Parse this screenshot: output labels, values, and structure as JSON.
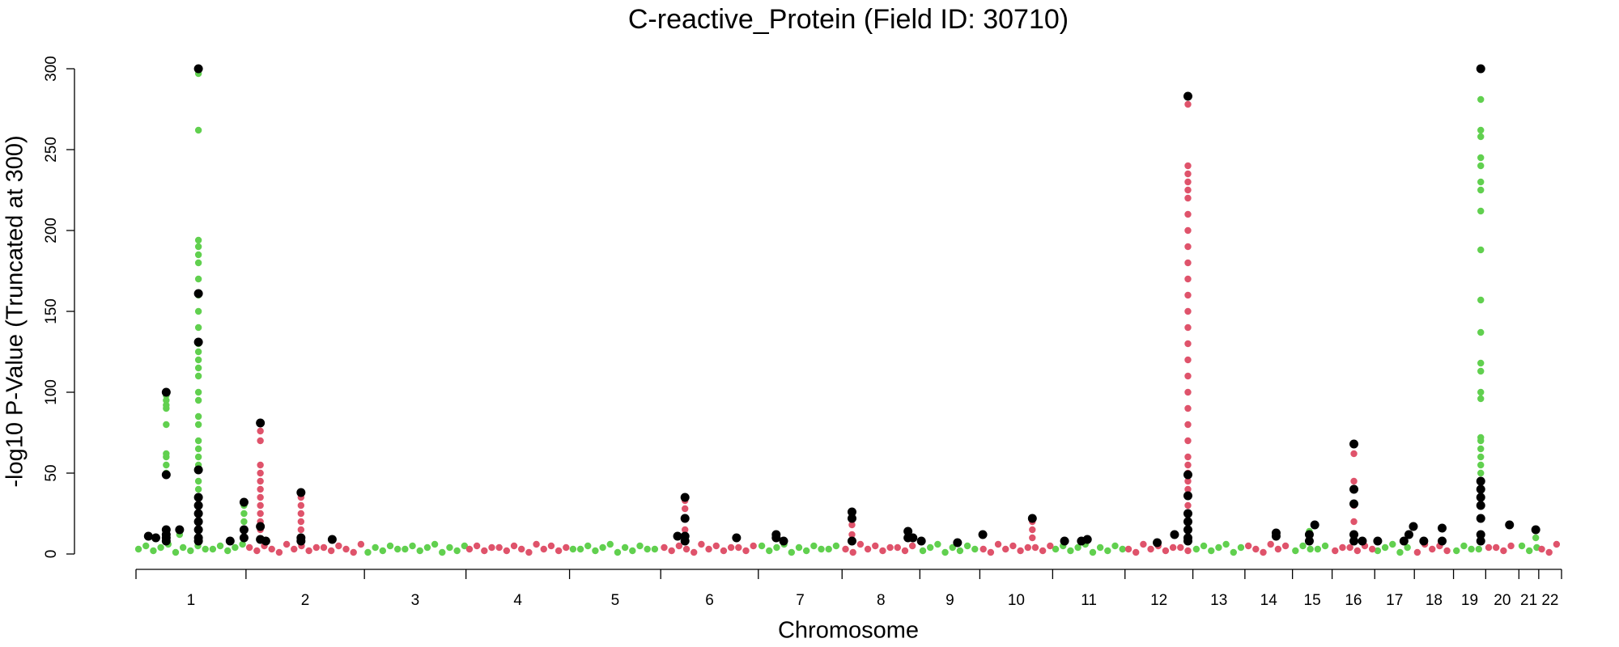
{
  "chart_data": {
    "type": "scatter",
    "title": "C-reactive_Protein (Field ID: 30710)",
    "x_label": "Chromosome",
    "y_label": "-log10 P-Value (Truncated at 300)",
    "categories": [
      "1",
      "2",
      "3",
      "4",
      "5",
      "6",
      "7",
      "8",
      "9",
      "10",
      "11",
      "12",
      "13",
      "14",
      "15",
      "16",
      "17",
      "18",
      "19",
      "20",
      "21",
      "22"
    ],
    "chromosome_bounds": [
      0,
      222,
      461,
      666,
      875,
      1059,
      1256,
      1425,
      1582,
      1703,
      1850,
      1996,
      2133,
      2238,
      2334,
      2414,
      2500,
      2580,
      2659,
      2724,
      2791,
      2831,
      2877
    ],
    "xlim": [
      0,
      2877
    ],
    "ylim": [
      -12,
      312
    ],
    "yticks": [
      0,
      50,
      100,
      150,
      200,
      250,
      300
    ],
    "series": [
      {
        "color": "#61D04F",
        "x": [
          5,
          20,
          35,
          50,
          65,
          80,
          95,
          110,
          125,
          140,
          155,
          170,
          185,
          200,
          215,
          468,
          483,
          498,
          513,
          528,
          543,
          558,
          573,
          588,
          603,
          618,
          633,
          648,
          663,
          882,
          897,
          912,
          927,
          942,
          957,
          972,
          987,
          1002,
          1017,
          1032,
          1047,
          1263,
          1278,
          1293,
          1308,
          1323,
          1338,
          1353,
          1368,
          1383,
          1398,
          1413,
          1588,
          1603,
          1618,
          1633,
          1648,
          1663,
          1678,
          1693,
          1856,
          1871,
          1886,
          1901,
          1916,
          1931,
          1946,
          1961,
          1976,
          1991,
          2140,
          2155,
          2170,
          2185,
          2200,
          2215,
          2230,
          2340,
          2355,
          2370,
          2385,
          2400,
          2506,
          2521,
          2536,
          2551,
          2566,
          2665,
          2680,
          2695,
          2710,
          2797,
          2812,
          2827,
          61,
          61,
          61,
          61,
          61,
          61,
          61,
          61,
          61,
          88,
          126,
          126,
          126,
          126,
          126,
          126,
          126,
          126,
          126,
          126,
          126,
          126,
          126,
          126,
          126,
          126,
          126,
          126,
          126,
          126,
          126,
          126,
          126,
          126,
          126,
          126,
          218,
          218,
          218,
          2368,
          2714,
          2714,
          2714,
          2714,
          2714,
          2714,
          2714,
          2714,
          2714,
          2714,
          2714,
          2714,
          2714,
          2714,
          2714,
          2714,
          2714,
          2714,
          2714,
          2714,
          2714,
          2825
        ],
        "values": [
          3,
          5,
          2,
          4,
          6,
          1,
          4,
          2,
          5,
          3,
          3,
          5,
          2,
          4,
          6,
          1,
          4,
          2,
          5,
          3,
          3,
          5,
          2,
          4,
          6,
          1,
          4,
          2,
          5,
          3,
          3,
          5,
          2,
          4,
          6,
          1,
          4,
          2,
          5,
          3,
          3,
          5,
          2,
          4,
          6,
          1,
          4,
          2,
          5,
          3,
          3,
          5,
          2,
          4,
          6,
          1,
          4,
          2,
          5,
          3,
          3,
          5,
          2,
          4,
          6,
          1,
          4,
          2,
          5,
          3,
          3,
          5,
          2,
          4,
          6,
          1,
          4,
          2,
          5,
          3,
          3,
          5,
          2,
          4,
          6,
          1,
          4,
          2,
          5,
          3,
          3,
          5,
          2,
          4,
          50,
          55,
          60,
          62,
          80,
          90,
          92,
          95,
          98,
          12,
          297,
          262,
          194,
          190,
          185,
          180,
          170,
          160,
          150,
          140,
          130,
          125,
          120,
          115,
          110,
          100,
          95,
          85,
          80,
          70,
          65,
          60,
          55,
          45,
          40,
          35,
          30,
          25,
          20,
          14,
          281,
          262,
          258,
          245,
          240,
          230,
          225,
          212,
          188,
          157,
          137,
          118,
          113,
          100,
          96,
          72,
          70,
          65,
          60,
          55,
          50,
          10
        ]
      },
      {
        "color": "#DF536B",
        "x": [
          229,
          244,
          259,
          274,
          289,
          304,
          319,
          334,
          349,
          364,
          379,
          394,
          409,
          424,
          439,
          454,
          673,
          688,
          703,
          718,
          733,
          748,
          763,
          778,
          793,
          808,
          823,
          838,
          853,
          868,
          1066,
          1081,
          1096,
          1111,
          1126,
          1141,
          1156,
          1171,
          1186,
          1201,
          1216,
          1231,
          1246,
          1432,
          1447,
          1462,
          1477,
          1492,
          1507,
          1522,
          1537,
          1552,
          1567,
          1710,
          1725,
          1740,
          1755,
          1770,
          1785,
          1800,
          1815,
          1830,
          1845,
          2003,
          2018,
          2033,
          2048,
          2063,
          2078,
          2093,
          2108,
          2123,
          2245,
          2260,
          2275,
          2290,
          2305,
          2320,
          2420,
          2435,
          2450,
          2465,
          2480,
          2495,
          2586,
          2601,
          2616,
          2631,
          2646,
          2730,
          2745,
          2760,
          2775,
          2837,
          2852,
          2867,
          251,
          251,
          251,
          251,
          251,
          251,
          251,
          251,
          251,
          251,
          251,
          333,
          333,
          333,
          333,
          333,
          333,
          1108,
          1108,
          1108,
          1108,
          1108,
          1445,
          1445,
          1445,
          1809,
          1809,
          1809,
          2123,
          2123,
          2123,
          2123,
          2123,
          2123,
          2123,
          2123,
          2123,
          2123,
          2123,
          2123,
          2123,
          2123,
          2123,
          2123,
          2123,
          2123,
          2123,
          2123,
          2123,
          2123,
          2123,
          2123,
          2123,
          2123,
          2123,
          2123,
          2123,
          2458,
          2458,
          2458,
          2458
        ],
        "values": [
          4,
          2,
          5,
          3,
          1,
          6,
          3,
          5,
          2,
          4,
          4,
          2,
          5,
          3,
          1,
          6,
          3,
          5,
          2,
          4,
          4,
          2,
          5,
          3,
          1,
          6,
          3,
          5,
          2,
          4,
          4,
          2,
          5,
          3,
          1,
          6,
          3,
          5,
          2,
          4,
          4,
          2,
          5,
          3,
          1,
          6,
          3,
          5,
          2,
          4,
          4,
          2,
          5,
          3,
          1,
          6,
          3,
          5,
          2,
          4,
          4,
          2,
          5,
          3,
          1,
          6,
          3,
          5,
          2,
          4,
          4,
          2,
          5,
          3,
          1,
          6,
          3,
          5,
          2,
          4,
          4,
          2,
          5,
          3,
          1,
          6,
          3,
          5,
          2,
          4,
          4,
          2,
          5,
          3,
          1,
          6,
          76,
          70,
          55,
          50,
          45,
          40,
          35,
          30,
          25,
          20,
          15,
          35,
          30,
          25,
          20,
          15,
          10,
          33,
          28,
          22,
          15,
          10,
          23,
          18,
          12,
          20,
          15,
          10,
          278,
          240,
          235,
          230,
          225,
          220,
          210,
          200,
          190,
          180,
          170,
          160,
          150,
          140,
          130,
          120,
          110,
          100,
          90,
          80,
          70,
          60,
          55,
          50,
          45,
          40,
          30,
          20,
          15,
          62,
          45,
          30,
          20
        ]
      },
      {
        "color": "#000000",
        "x": [
          25,
          40,
          61,
          61,
          61,
          61,
          61,
          61,
          88,
          126,
          126,
          126,
          126,
          126,
          126,
          126,
          126,
          126,
          126,
          126,
          190,
          218,
          218,
          218,
          251,
          251,
          251,
          262,
          333,
          333,
          333,
          396,
          1093,
          1108,
          1108,
          1108,
          1108,
          1212,
          1292,
          1292,
          1307,
          1445,
          1445,
          1445,
          1558,
          1558,
          1568,
          1585,
          1658,
          1709,
          1809,
          1874,
          1908,
          1920,
          2061,
          2096,
          2123,
          2123,
          2123,
          2123,
          2123,
          2123,
          2123,
          2123,
          2301,
          2301,
          2368,
          2368,
          2379,
          2458,
          2458,
          2458,
          2458,
          2458,
          2475,
          2506,
          2559,
          2569,
          2578,
          2599,
          2636,
          2636,
          2714,
          2714,
          2714,
          2714,
          2714,
          2714,
          2714,
          2714,
          2772,
          2825
        ],
        "values": [
          11,
          10,
          100,
          49,
          15,
          12,
          10,
          8,
          15,
          300,
          161,
          131,
          52,
          35,
          30,
          25,
          20,
          15,
          10,
          8,
          8,
          32,
          15,
          10,
          81,
          17,
          9,
          8,
          38,
          10,
          8,
          9,
          11,
          35,
          22,
          11,
          8,
          10,
          12,
          10,
          8,
          26,
          22,
          8,
          14,
          10,
          10,
          8,
          7,
          12,
          22,
          8,
          8,
          9,
          7,
          12,
          283,
          49,
          36,
          25,
          20,
          15,
          10,
          8,
          13,
          11,
          12,
          8,
          18,
          68,
          40,
          31,
          12,
          8,
          8,
          8,
          8,
          12,
          17,
          8,
          16,
          8,
          300,
          45,
          40,
          35,
          30,
          22,
          12,
          8,
          18,
          15
        ]
      }
    ]
  }
}
